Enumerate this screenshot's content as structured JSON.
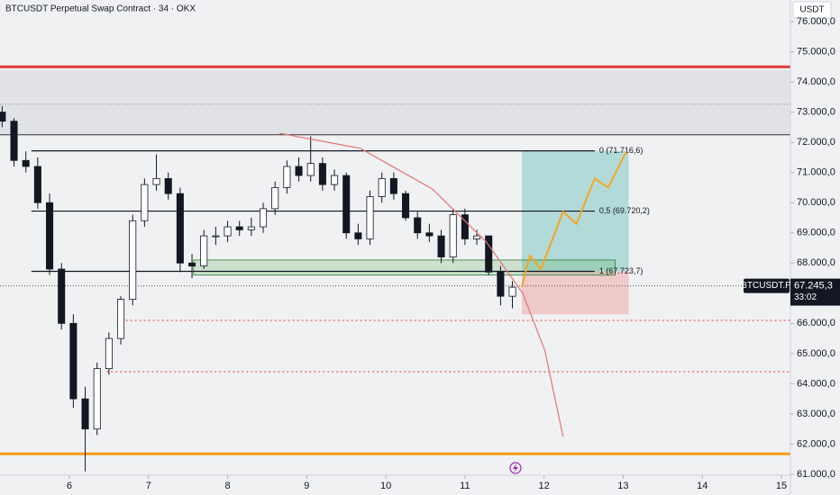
{
  "chart_data": {
    "type": "candlestick",
    "title": "BTCUSDT Perpetual Swap Contract · 34 · OKX",
    "currency_label": "USDT",
    "x": [
      5.15,
      5.3,
      5.45,
      5.6,
      5.75,
      5.9,
      6.05,
      6.2,
      6.35,
      6.5,
      6.65,
      6.8,
      6.95,
      7.1,
      7.25,
      7.4,
      7.55,
      7.7,
      7.85,
      8.0,
      8.15,
      8.3,
      8.45,
      8.6,
      8.75,
      8.9,
      9.05,
      9.2,
      9.35,
      9.5,
      9.65,
      9.8,
      9.95,
      10.1,
      10.25,
      10.4,
      10.55,
      10.7,
      10.85,
      11.0,
      11.15,
      11.3,
      11.45,
      11.6
    ],
    "open": [
      73000,
      72700,
      71400,
      71200,
      70000,
      67800,
      66000,
      63500,
      62500,
      64500,
      65500,
      66800,
      69400,
      70600,
      70800,
      70300,
      68000,
      67900,
      68900,
      68900,
      69200,
      69100,
      69200,
      69800,
      70500,
      71200,
      70900,
      71300,
      70600,
      70900,
      69000,
      68800,
      70200,
      70800,
      70300,
      69500,
      69000,
      68900,
      68200,
      69600,
      68800,
      68900,
      67700,
      66900
    ],
    "high": [
      73200,
      72800,
      71700,
      71500,
      70300,
      68000,
      66300,
      63900,
      64700,
      65700,
      66900,
      69600,
      70800,
      71600,
      71000,
      70500,
      68300,
      69100,
      69200,
      69400,
      69400,
      69500,
      70000,
      70700,
      71400,
      71500,
      72200,
      71500,
      71100,
      71000,
      69300,
      70400,
      71000,
      71000,
      70400,
      69700,
      69300,
      69100,
      69800,
      69800,
      69100,
      68900,
      67900,
      67400
    ],
    "low": [
      72500,
      71200,
      71000,
      69800,
      67600,
      65800,
      63200,
      61100,
      62300,
      64300,
      65300,
      66600,
      69200,
      70400,
      70100,
      67700,
      67500,
      67800,
      68600,
      68700,
      68900,
      68900,
      69000,
      69600,
      70300,
      70700,
      70700,
      70400,
      70400,
      68800,
      68600,
      68600,
      70000,
      70100,
      69400,
      68800,
      68700,
      68000,
      68000,
      68600,
      68600,
      67600,
      66600,
      66500
    ],
    "close": [
      72700,
      71400,
      71200,
      70000,
      67800,
      66000,
      63500,
      62500,
      64500,
      65500,
      66800,
      69400,
      70600,
      70800,
      70300,
      68000,
      67900,
      68900,
      68900,
      69200,
      69100,
      69200,
      69800,
      70500,
      71200,
      70900,
      71300,
      70600,
      70900,
      69000,
      68800,
      70200,
      70800,
      70300,
      69500,
      69000,
      68900,
      68200,
      69600,
      68800,
      68900,
      67700,
      66900,
      67200
    ],
    "up_color": "#ffffff",
    "down_color": "#131722",
    "xlim": [
      5.123,
      15.114
    ],
    "ylim": [
      60970,
      76716
    ],
    "xticks": [
      6,
      7,
      8,
      9,
      10,
      11,
      12,
      13,
      14,
      15
    ],
    "yticks": [
      {
        "value": 61000,
        "label": "61.000,0"
      },
      {
        "value": 62000,
        "label": "62.000,0"
      },
      {
        "value": 63000,
        "label": "63.000,0"
      },
      {
        "value": 64000,
        "label": "64.000,0"
      },
      {
        "value": 65000,
        "label": "65.000,0"
      },
      {
        "value": 66000,
        "label": "66.000,0"
      },
      {
        "value": 67000,
        "label": "67.000,0"
      },
      {
        "value": 68000,
        "label": "68.000,0"
      },
      {
        "value": 69000,
        "label": "69.000,0"
      },
      {
        "value": 70000,
        "label": "70.000,0"
      },
      {
        "value": 71000,
        "label": "71.000,0"
      },
      {
        "value": 72000,
        "label": "72.000,0"
      },
      {
        "value": 73000,
        "label": "73.000,0"
      },
      {
        "value": 74000,
        "label": "74.000,0"
      },
      {
        "value": 75000,
        "label": "75.000,0"
      },
      {
        "value": 76000,
        "label": "76.000,0"
      }
    ],
    "gray_zone": {
      "y": [
        72250,
        74400
      ],
      "mid": 73260
    },
    "horizontal_lines": [
      {
        "value": 74500,
        "color": "#e53935"
      },
      {
        "value": 61680,
        "color": "#f39c12"
      }
    ],
    "fib_levels": {
      "x": [
        5.52,
        12.64
      ],
      "levels": [
        {
          "value": 71716.6,
          "label": "0 (71.716,6)"
        },
        {
          "value": 69720.2,
          "label": "0,5 (69.720,2)"
        },
        {
          "value": 67723.7,
          "label": "1 (67.723,7)"
        }
      ]
    },
    "support_zone": {
      "x": [
        7.57,
        12.9
      ],
      "y": [
        67600,
        68100
      ]
    },
    "position": {
      "x": [
        11.72,
        13.07
      ],
      "target": 71716.6,
      "entry": 67723.7,
      "stop": 66300
    },
    "dotted_levels": [
      {
        "value": 66100,
        "x_start": 6.6
      },
      {
        "value": 64400,
        "x_start": 6.47
      }
    ],
    "projection": {
      "x": [
        11.717,
        11.82,
        11.96,
        12.24,
        12.41,
        12.64,
        12.81,
        13.04
      ],
      "values": [
        67200,
        68250,
        67800,
        69700,
        69300,
        70800,
        70500,
        71700
      ],
      "color": "#f5a623"
    },
    "arc": {
      "x": [
        8.654,
        9.678,
        10.59,
        11.27,
        11.73,
        12.01,
        12.24
      ],
      "values": [
        72300,
        71800,
        70450,
        68700,
        67000,
        65100,
        62250
      ],
      "color": "#e57373"
    },
    "current_price": {
      "value": 67245.3,
      "label": "67.245,3",
      "symbol": "BTCUSDT.P",
      "countdown": "33:02"
    }
  }
}
